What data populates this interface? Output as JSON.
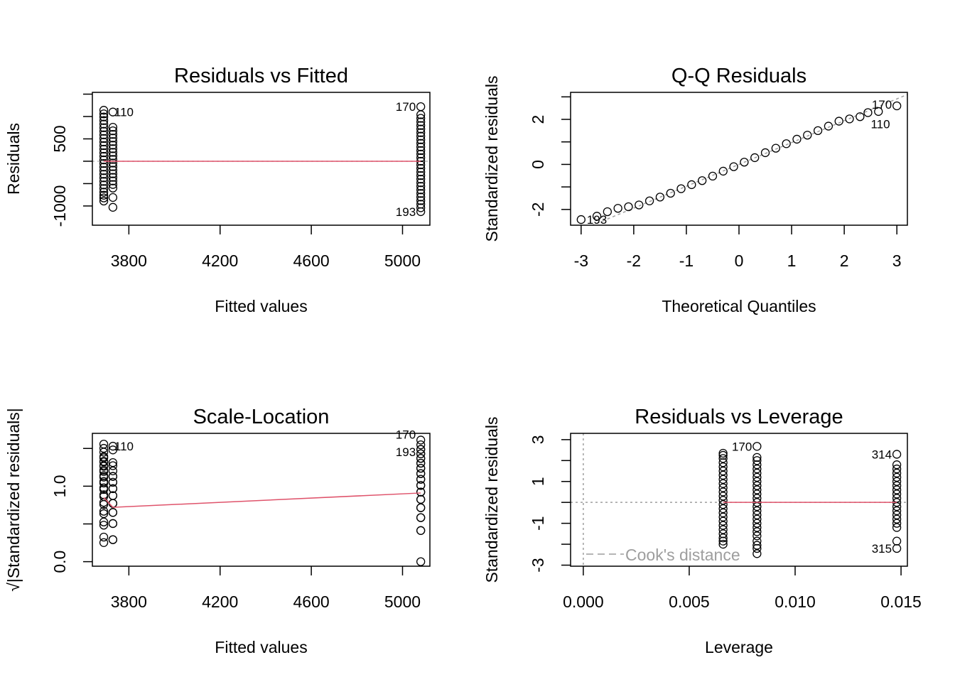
{
  "chart_data": [
    {
      "type": "scatter",
      "title": "Residuals vs Fitted",
      "xlabel": "Fitted values",
      "ylabel": "Residuals",
      "xlim": [
        3640,
        5120
      ],
      "ylim": [
        -1430,
        1540
      ],
      "xticks": [
        3800,
        4200,
        4600,
        5000
      ],
      "yticks": [
        -1000,
        -500,
        0,
        500,
        1000,
        1500
      ],
      "ytick_labels": {
        "-1000": "-1000",
        "500": "500"
      },
      "groups": [
        {
          "fitted": 3690,
          "residuals": [
            -890,
            -820,
            -760,
            -690,
            -610,
            -530,
            -450,
            -370,
            -290,
            -210,
            -130,
            -50,
            30,
            110,
            190,
            270,
            350,
            430,
            510,
            590,
            670,
            750,
            830,
            910,
            990,
            1060,
            1140
          ]
        },
        {
          "fitted": 3730,
          "residuals": [
            -1030,
            -810,
            -600,
            -520,
            -440,
            -360,
            -280,
            -200,
            -120,
            -40,
            40,
            120,
            200,
            280,
            360,
            440,
            520,
            600,
            680,
            760,
            1100
          ]
        },
        {
          "fitted": 5080,
          "residuals": [
            -1127,
            -1040,
            -960,
            -880,
            -800,
            -720,
            -640,
            -560,
            -480,
            -400,
            -320,
            -240,
            -160,
            -80,
            0,
            80,
            160,
            240,
            320,
            400,
            480,
            560,
            640,
            720,
            800,
            880,
            960,
            1040,
            1220
          ]
        }
      ],
      "labels": [
        {
          "text": "110",
          "x": 3730,
          "y": 1100
        },
        {
          "text": "170",
          "x": 5080,
          "y": 1220
        },
        {
          "text": "193",
          "x": 5080,
          "y": -1127
        }
      ],
      "smooth": [
        [
          3690,
          0
        ],
        [
          3730,
          0
        ],
        [
          5080,
          0
        ]
      ],
      "colors": {
        "points": "#000000",
        "smooth": "#DF536B",
        "reference": "#BEBEBE"
      }
    },
    {
      "type": "scatter",
      "title": "Q-Q Residuals",
      "xlabel": "Theoretical Quantiles",
      "ylabel": "Standardized residuals",
      "xlim": [
        -3.2,
        3.2
      ],
      "ylim": [
        -2.7,
        3.2
      ],
      "xticks": [
        -3,
        -2,
        -1,
        0,
        1,
        2,
        3
      ],
      "yticks": [
        -2,
        -1,
        0,
        1,
        2,
        3
      ],
      "ytick_labels": {
        "-2": "-2",
        "0": "0",
        "2": "2"
      },
      "points": [
        [
          -3,
          -2.45
        ],
        [
          -2.7,
          -2.3
        ],
        [
          -2.5,
          -2.1
        ],
        [
          -2.3,
          -1.95
        ],
        [
          -2.1,
          -1.88
        ],
        [
          -1.9,
          -1.8
        ],
        [
          -1.7,
          -1.62
        ],
        [
          -1.5,
          -1.45
        ],
        [
          -1.3,
          -1.28
        ],
        [
          -1.1,
          -1.08
        ],
        [
          -0.9,
          -0.9
        ],
        [
          -0.7,
          -0.72
        ],
        [
          -0.5,
          -0.52
        ],
        [
          -0.3,
          -0.3
        ],
        [
          -0.1,
          -0.1
        ],
        [
          0.1,
          0.1
        ],
        [
          0.3,
          0.3
        ],
        [
          0.5,
          0.52
        ],
        [
          0.7,
          0.72
        ],
        [
          0.9,
          0.92
        ],
        [
          1.1,
          1.12
        ],
        [
          1.3,
          1.3
        ],
        [
          1.5,
          1.5
        ],
        [
          1.7,
          1.7
        ],
        [
          1.9,
          1.92
        ],
        [
          2.1,
          2.02
        ],
        [
          2.3,
          2.12
        ],
        [
          2.45,
          2.3
        ],
        [
          2.65,
          2.35
        ],
        [
          3,
          2.6
        ]
      ],
      "reference_slope": 0.97,
      "labels": [
        {
          "text": "193",
          "x": -3,
          "y": -2.45
        },
        {
          "text": "110",
          "x": 2.45,
          "y": 2.3
        },
        {
          "text": "170",
          "x": 3,
          "y": 2.6
        }
      ]
    },
    {
      "type": "scatter",
      "title": "Scale-Location",
      "xlabel": "Fitted values",
      "ylabel": "√|Standardized residuals|",
      "xlim": [
        3640,
        5120
      ],
      "ylim": [
        -0.06,
        1.7
      ],
      "xticks": [
        3800,
        4200,
        4600,
        5000
      ],
      "yticks": [
        0,
        0.5,
        1.0,
        1.5
      ],
      "ytick_labels": {
        "0": "0.0",
        "1": "1.0"
      },
      "residual_scale": 470,
      "smooth": [
        [
          3690,
          0.85
        ],
        [
          3730,
          0.72
        ],
        [
          5080,
          0.91
        ]
      ],
      "labels": [
        {
          "text": "110",
          "x": 3730,
          "y": 1.53
        },
        {
          "text": "170",
          "x": 5080,
          "y": 1.61
        },
        {
          "text": "193",
          "x": 5080,
          "y": 1.55
        }
      ]
    },
    {
      "type": "scatter",
      "title": "Residuals vs Leverage",
      "xlabel": "Leverage",
      "ylabel": "Standardized residuals",
      "xlim": [
        -0.0006,
        0.0153
      ],
      "ylim": [
        -3.05,
        3.3
      ],
      "xticks": [
        0.0,
        0.005,
        0.01,
        0.015
      ],
      "xtick_labels": [
        "0.000",
        "0.005",
        "0.010",
        "0.015"
      ],
      "yticks": [
        -3,
        -2,
        -1,
        0,
        1,
        2,
        3
      ],
      "ytick_labels": {
        "-3": "-3",
        "-1": "-1",
        "1": "1",
        "3": "3"
      },
      "groups": [
        {
          "leverage": 0.0066,
          "std_residuals": [
            -2.0,
            -1.85,
            -1.7,
            -1.5,
            -1.3,
            -1.1,
            -0.9,
            -0.7,
            -0.5,
            -0.3,
            -0.1,
            0.1,
            0.3,
            0.5,
            0.7,
            0.9,
            1.1,
            1.3,
            1.5,
            1.7,
            1.9,
            2.1,
            2.25,
            2.35
          ]
        },
        {
          "leverage": 0.0082,
          "std_residuals": [
            -2.45,
            -2.2,
            -2.05,
            -1.85,
            -1.6,
            -1.4,
            -1.2,
            -1.0,
            -0.8,
            -0.6,
            -0.4,
            -0.2,
            0,
            0.2,
            0.4,
            0.6,
            0.8,
            1.0,
            1.2,
            1.4,
            1.6,
            1.8,
            2.0,
            2.15,
            2.68
          ]
        },
        {
          "leverage": 0.0148,
          "std_residuals": [
            -2.2,
            -1.85,
            -1.2,
            -1.0,
            -0.8,
            -0.6,
            -0.4,
            -0.2,
            0,
            0.2,
            0.4,
            0.6,
            0.8,
            1.0,
            1.2,
            1.4,
            1.6,
            1.8,
            2.3
          ]
        }
      ],
      "labels": [
        {
          "text": "170",
          "x": 0.0082,
          "y": 2.68
        },
        {
          "text": "314",
          "x": 0.0148,
          "y": 2.3
        },
        {
          "text": "315",
          "x": 0.0148,
          "y": -2.2
        }
      ],
      "legend": "Cook's distance",
      "legend_position": "bottom-left"
    }
  ]
}
